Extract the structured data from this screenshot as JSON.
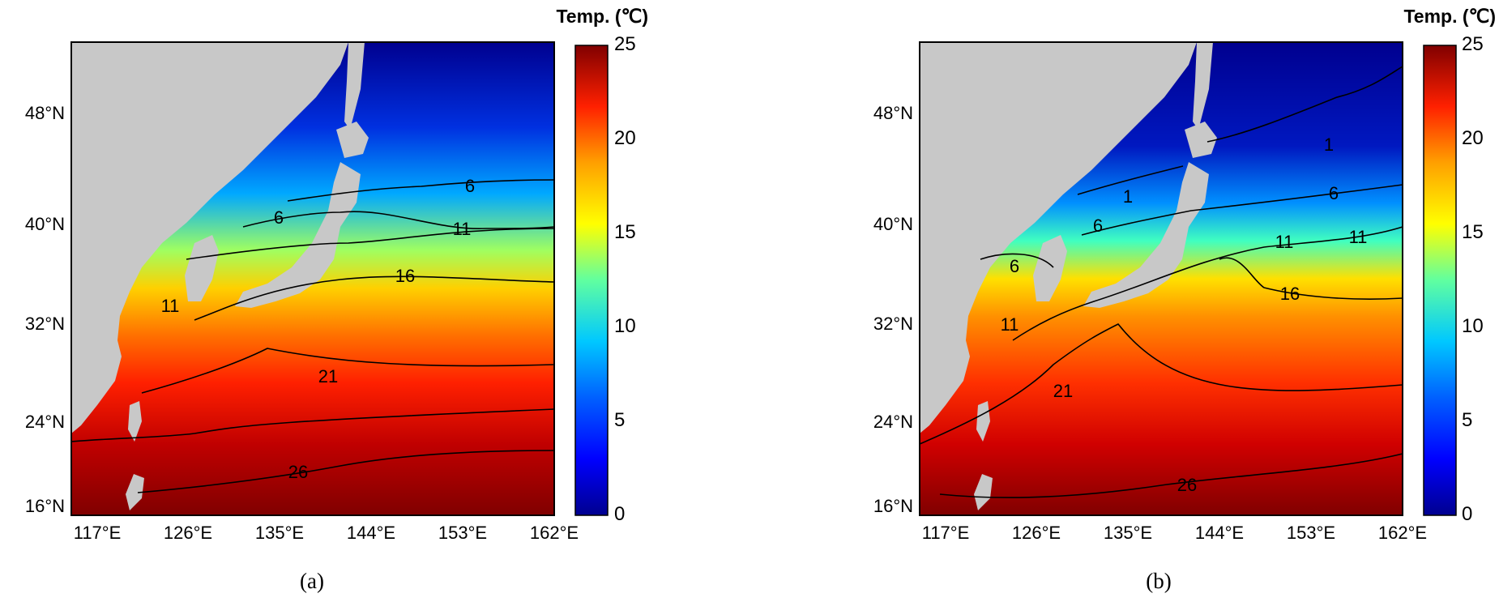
{
  "colorbar": {
    "title": "Temp. (℃)",
    "min": 0,
    "max": 25,
    "ticks": [
      "0",
      "5",
      "10",
      "15",
      "20",
      "25"
    ],
    "colormap": [
      "#00008f",
      "#0000ff",
      "#0080ff",
      "#00ffff",
      "#80ff80",
      "#ffff00",
      "#ff8000",
      "#ff0000",
      "#800000"
    ]
  },
  "axes": {
    "lon_ticks": [
      "117°E",
      "126°E",
      "135°E",
      "144°E",
      "153°E",
      "162°E"
    ],
    "lat_ticks": [
      "48°N",
      "40°N",
      "32°N",
      "24°N",
      "16°N"
    ],
    "lon_range": [
      114.5,
      162
    ],
    "lat_range": [
      15.5,
      53.5
    ]
  },
  "land_color": "#c8c8c8",
  "panels": [
    {
      "label": "(a)",
      "contour_labels": [
        "6",
        "6",
        "11",
        "11",
        "16",
        "21",
        "26"
      ]
    },
    {
      "label": "(b)",
      "contour_labels": [
        "1",
        "1",
        "6",
        "6",
        "6",
        "11",
        "11",
        "11",
        "16",
        "21",
        "26"
      ]
    }
  ]
}
